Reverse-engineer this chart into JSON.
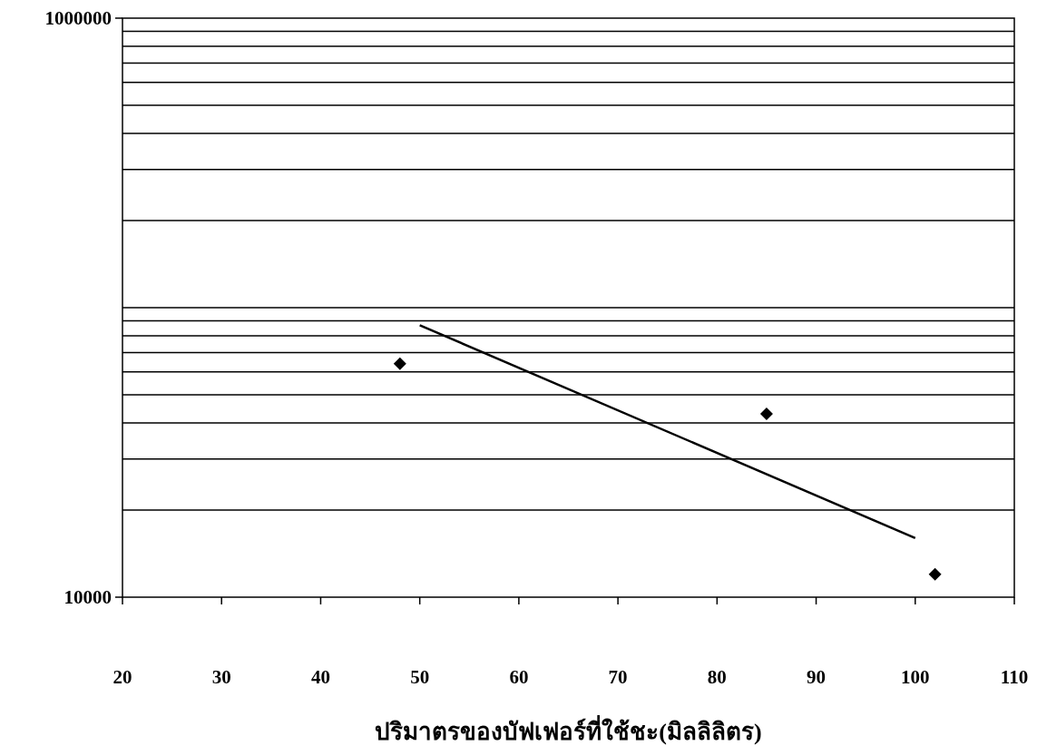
{
  "chart_data": {
    "type": "scatter",
    "xlabel": "ปริมาตรของบัฟเฟอร์ที่ใช้ชะ(มิลลิลิตร)",
    "log": "y",
    "grid": "y",
    "marker": "diamond",
    "xlim": [
      20,
      110
    ],
    "xticks": [
      20,
      30,
      40,
      50,
      60,
      70,
      80,
      90,
      100,
      110
    ],
    "ylim": [
      10000,
      1000000
    ],
    "yticks": [
      10000,
      1000000
    ],
    "series": [
      {
        "color": "#000000",
        "x": [
          48,
          85,
          102
        ],
        "values": [
          64000,
          43000,
          12000
        ]
      },
      {
        "type": "line",
        "marker": "none",
        "line_style": "solid",
        "color": "#000000",
        "x": [
          50,
          100
        ],
        "values": [
          87000,
          16000
        ]
      }
    ]
  }
}
